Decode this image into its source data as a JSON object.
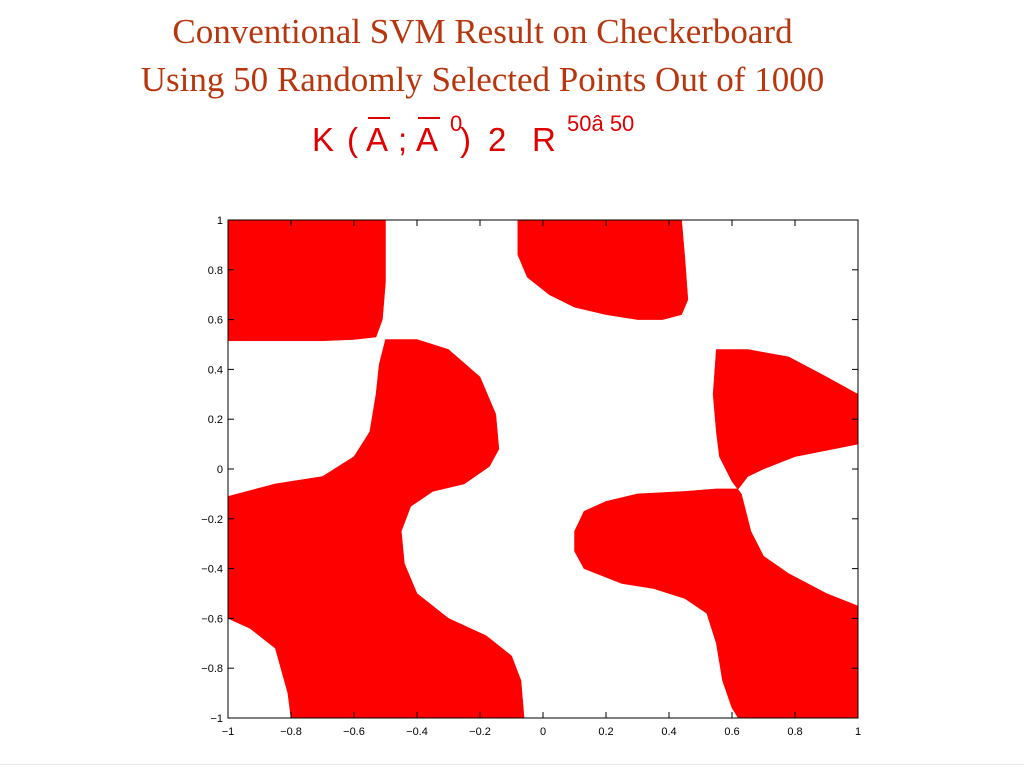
{
  "slide": {
    "title_line1": "Conventional SVM Result on Checkerboard",
    "title_line2": "Using 50 Randomly Selected Points Out of 1000",
    "formula": {
      "k": "K",
      "open_paren": "(",
      "a1": "A",
      "semicolon": ";",
      "a2": "A",
      "prime": "0",
      "close_paren": ")",
      "in_symbol": "2",
      "r": "R",
      "dims": "50â 50"
    }
  },
  "colors": {
    "title": "#b8360e",
    "formula": "#e00000",
    "region_fill": "#ff0000",
    "background": "#ffffff",
    "axis": "#000000"
  },
  "chart_data": {
    "type": "heatmap",
    "description_of_marks": "two-class decision regions (red = one class, white = other)",
    "title": "",
    "xlabel": "",
    "ylabel": "",
    "xlim": [
      -1,
      1
    ],
    "ylim": [
      -1,
      1
    ],
    "xticks": [
      -1,
      -0.8,
      -0.6,
      -0.4,
      -0.2,
      0,
      0.2,
      0.4,
      0.6,
      0.8,
      1
    ],
    "xtick_labels": [
      "−1",
      "−0.8",
      "−0.6",
      "−0.4",
      "−0.2",
      "0",
      "0.2",
      "0.4",
      "0.6",
      "0.8",
      "1"
    ],
    "yticks": [
      1,
      0.8,
      0.6,
      0.4,
      0.2,
      0,
      -0.2,
      -0.4,
      -0.6,
      -0.8,
      -1
    ],
    "ytick_labels": [
      "1",
      "0.8",
      "0.6",
      "0.4",
      "0.2",
      "0",
      "−0.2",
      "−0.4",
      "−0.6",
      "−0.8",
      "−1"
    ],
    "grid": false,
    "regions": [
      {
        "name": "top-left",
        "color": "#ff0000",
        "points": [
          [
            -1,
            1
          ],
          [
            -0.5,
            1
          ],
          [
            -0.5,
            0.75
          ],
          [
            -0.51,
            0.6
          ],
          [
            -0.53,
            0.53
          ],
          [
            -0.6,
            0.52
          ],
          [
            -0.7,
            0.515
          ],
          [
            -1,
            0.515
          ]
        ]
      },
      {
        "name": "top-center",
        "color": "#ff0000",
        "points": [
          [
            -0.08,
            1
          ],
          [
            0.44,
            1
          ],
          [
            0.45,
            0.85
          ],
          [
            0.46,
            0.68
          ],
          [
            0.44,
            0.62
          ],
          [
            0.38,
            0.6
          ],
          [
            0.3,
            0.6
          ],
          [
            0.2,
            0.62
          ],
          [
            0.1,
            0.65
          ],
          [
            0.02,
            0.7
          ],
          [
            -0.05,
            0.77
          ],
          [
            -0.08,
            0.86
          ]
        ]
      },
      {
        "name": "center-s",
        "color": "#ff0000",
        "points": [
          [
            -0.5,
            0.52
          ],
          [
            -0.4,
            0.52
          ],
          [
            -0.3,
            0.48
          ],
          [
            -0.2,
            0.37
          ],
          [
            -0.15,
            0.22
          ],
          [
            -0.14,
            0.08
          ],
          [
            -0.17,
            0.01
          ],
          [
            -0.25,
            -0.06
          ],
          [
            -0.35,
            -0.09
          ],
          [
            -0.42,
            -0.15
          ],
          [
            -0.45,
            -0.25
          ],
          [
            -0.44,
            -0.38
          ],
          [
            -0.4,
            -0.5
          ],
          [
            -0.3,
            -0.6
          ],
          [
            -0.18,
            -0.67
          ],
          [
            -0.1,
            -0.75
          ],
          [
            -0.07,
            -0.85
          ],
          [
            -0.06,
            -1
          ],
          [
            -0.8,
            -1
          ],
          [
            -0.81,
            -0.9
          ],
          [
            -0.85,
            -0.72
          ],
          [
            -0.93,
            -0.64
          ],
          [
            -1,
            -0.6
          ],
          [
            -1,
            -0.11
          ],
          [
            -0.85,
            -0.06
          ],
          [
            -0.7,
            -0.03
          ],
          [
            -0.6,
            0.05
          ],
          [
            -0.55,
            0.15
          ],
          [
            -0.53,
            0.3
          ],
          [
            -0.52,
            0.42
          ]
        ]
      },
      {
        "name": "right-upper-s",
        "color": "#ff0000",
        "points": [
          [
            0.55,
            0.48
          ],
          [
            0.65,
            0.48
          ],
          [
            0.78,
            0.45
          ],
          [
            0.9,
            0.37
          ],
          [
            1,
            0.3
          ],
          [
            1,
            0.1
          ],
          [
            0.92,
            0.08
          ],
          [
            0.8,
            0.05
          ],
          [
            0.7,
            0.0
          ],
          [
            0.65,
            -0.03
          ],
          [
            0.62,
            -0.08
          ],
          [
            0.55,
            -0.08
          ],
          [
            0.45,
            -0.09
          ],
          [
            0.3,
            -0.1
          ],
          [
            0.2,
            -0.13
          ],
          [
            0.13,
            -0.17
          ],
          [
            0.1,
            -0.25
          ],
          [
            0.1,
            -0.33
          ],
          [
            0.13,
            -0.4
          ],
          [
            0.25,
            -0.46
          ],
          [
            0.35,
            -0.48
          ],
          [
            0.45,
            -0.52
          ],
          [
            0.52,
            -0.58
          ],
          [
            0.55,
            -0.7
          ],
          [
            0.57,
            -0.85
          ],
          [
            0.6,
            -0.96
          ],
          [
            0.62,
            -1
          ],
          [
            1,
            -1
          ],
          [
            1,
            -0.55
          ],
          [
            0.9,
            -0.5
          ],
          [
            0.78,
            -0.42
          ],
          [
            0.7,
            -0.35
          ],
          [
            0.66,
            -0.25
          ],
          [
            0.64,
            -0.15
          ],
          [
            0.63,
            -0.1
          ],
          [
            0.6,
            -0.05
          ],
          [
            0.56,
            0.05
          ],
          [
            0.55,
            0.15
          ],
          [
            0.54,
            0.3
          ]
        ]
      }
    ]
  }
}
